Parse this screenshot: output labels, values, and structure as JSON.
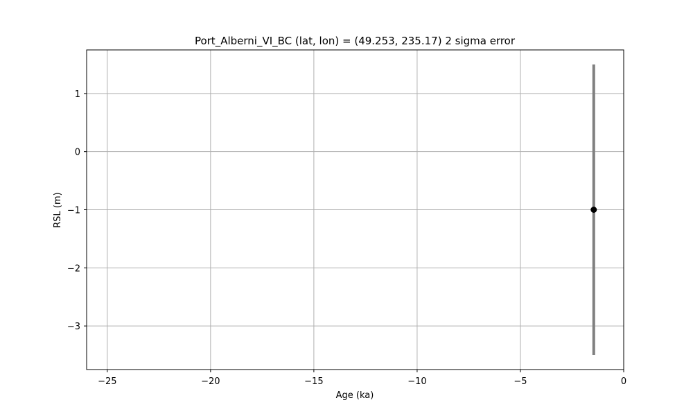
{
  "chart_data": {
    "type": "scatter",
    "title": "Port_Alberni_VI_BC (lat, lon) = (49.253, 235.17)  2 sigma error",
    "xlabel": "Age (ka)",
    "ylabel": "RSL (m)",
    "xlim": [
      -26,
      0
    ],
    "ylim": [
      -3.75,
      1.75
    ],
    "xticks": [
      -25,
      -20,
      -15,
      -10,
      -5,
      0
    ],
    "xtick_labels": [
      "−25",
      "−20",
      "−15",
      "−10",
      "−5",
      "0"
    ],
    "yticks": [
      -3,
      -2,
      -1,
      0,
      1
    ],
    "ytick_labels": [
      "−3",
      "−2",
      "−1",
      "0",
      "1"
    ],
    "grid": true,
    "points": [
      {
        "x": -1.45,
        "y": -1.0,
        "err_low": -3.5,
        "err_high": 1.5
      }
    ],
    "colors": {
      "point": "#000000",
      "errorbar": "#808080",
      "grid": "#b0b0b0"
    }
  }
}
